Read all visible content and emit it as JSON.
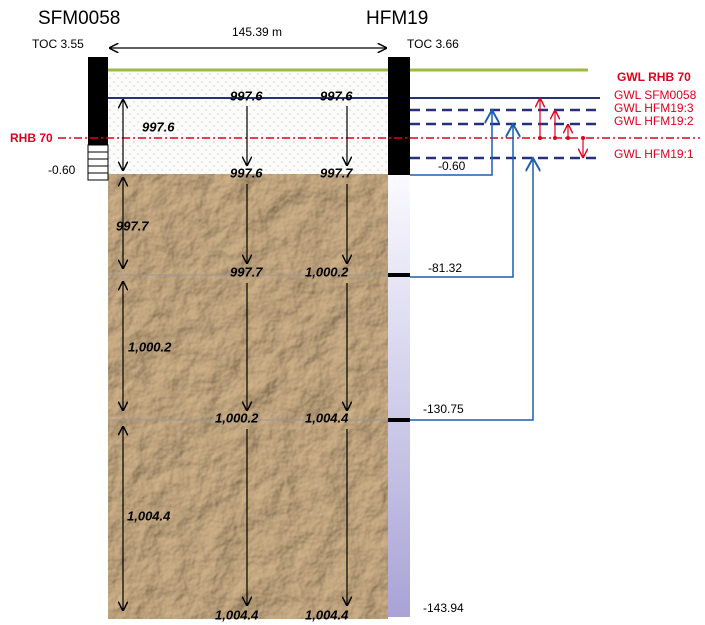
{
  "boreholes": [
    {
      "name": "SFM0058",
      "toc": "TOC 3.55",
      "bottom": "-0.60"
    },
    {
      "name": "HFM19",
      "toc": "TOC 3.66"
    }
  ],
  "distance": "145.39  m",
  "reference": "RHB 70",
  "depths": [
    "-0.60",
    "-81.32",
    "-130.75",
    "-143.94"
  ],
  "legend": [
    "GWL RHB 70",
    "GWL SFM0058",
    "GWL HFM19:3",
    "GWL HFM19:2",
    "GWL HFM19:1"
  ],
  "left_values": [
    "997.6",
    "997.7",
    "1,000.2",
    "1,004.4"
  ],
  "mid_values": [
    "997.6",
    "997.6",
    "997.7",
    "1,000.2",
    "1,004.4"
  ],
  "right_values": [
    "997.6",
    "997.7",
    "1,000.2",
    "1,004.4",
    "1,004.4"
  ]
}
